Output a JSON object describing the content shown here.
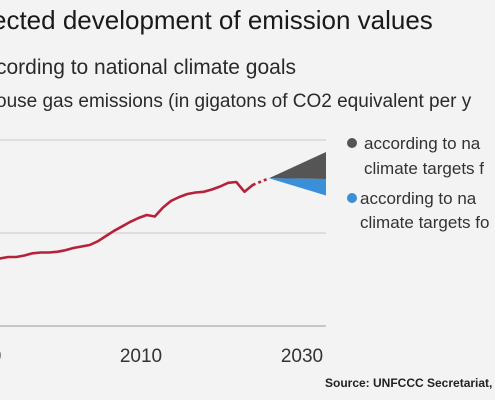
{
  "title": "ected development of emission values",
  "subtitle": "cording to national climate goals",
  "unit_label": "ouse gas emissions (in gigatons of CO2 equivalent per y",
  "source": "Source: UNFCCC Secretariat, C",
  "chart_data": {
    "type": "line",
    "x_ticks": [
      "0",
      "2010",
      "2030"
    ],
    "grid": true,
    "legend_placement": "right",
    "series": [
      {
        "key": "historical",
        "color": "#b5223a",
        "x": [
          1990,
          1991,
          1992,
          1993,
          1994,
          1995,
          1996,
          1997,
          1998,
          1999,
          2000,
          2001,
          2002,
          2003,
          2004,
          2005,
          2006,
          2007,
          2008,
          2009,
          2010,
          2011,
          2012,
          2013,
          2014,
          2015,
          2016,
          2017,
          2018,
          2019,
          2020,
          2021
        ],
        "values": [
          37.2,
          37.4,
          37.4,
          37.6,
          37.9,
          38.0,
          38.0,
          38.1,
          38.3,
          38.6,
          38.8,
          39.0,
          39.5,
          40.2,
          40.9,
          41.5,
          42.1,
          42.6,
          43.0,
          42.8,
          44.0,
          44.9,
          45.4,
          45.8,
          46.0,
          46.1,
          46.4,
          46.8,
          47.3,
          47.4,
          46.1,
          47.0
        ],
        "dotted_x": [
          2021,
          2023
        ],
        "dotted_values": [
          47.0,
          47.9
        ]
      }
    ],
    "projection": {
      "x": [
        2023,
        2030
      ],
      "upper_color": "#555555",
      "lower_color": "#3b8fd8",
      "upper": [
        47.9,
        51.4
      ],
      "middle": [
        47.9,
        47.8
      ],
      "lower": [
        47.9,
        45.6
      ]
    },
    "legend": [
      {
        "color": "#555555",
        "lines": [
          "according to na",
          "climate targets f"
        ]
      },
      {
        "color": "#3b8fd8",
        "lines": [
          "according to na",
          "climate targets fo"
        ]
      }
    ]
  }
}
